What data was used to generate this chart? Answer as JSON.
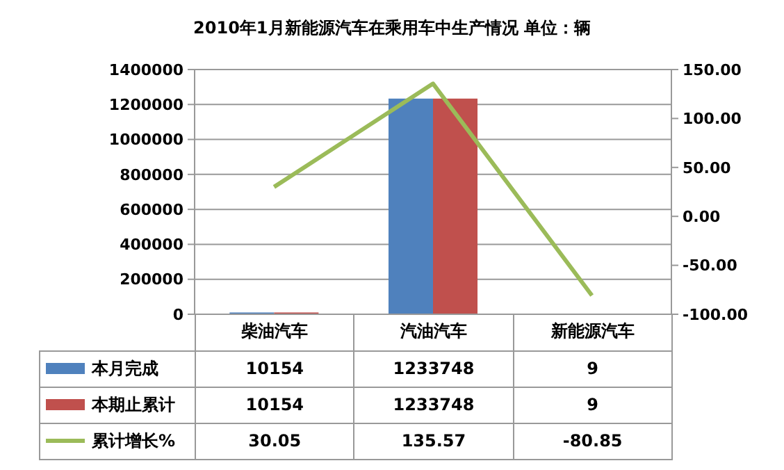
{
  "chart_data": {
    "type": "bar",
    "title": "2010年1月新能源汽车在乘用车中生产情况  单位：辆",
    "categories": [
      "柴油汽车",
      "汽油汽车",
      "新能源汽车"
    ],
    "series": [
      {
        "name": "本月完成",
        "color": "#4f81bd",
        "values": [
          10154,
          1233748,
          9
        ]
      },
      {
        "name": "本期止累计",
        "color": "#c0504d",
        "values": [
          10154,
          1233748,
          9
        ]
      },
      {
        "name": "累计增长%",
        "type": "line",
        "axis": "y2",
        "color": "#9bbb59",
        "values": [
          30.05,
          135.57,
          -80.85
        ]
      }
    ],
    "ylim": [
      0,
      1400000
    ],
    "yticks": [
      0,
      200000,
      400000,
      600000,
      800000,
      1000000,
      1200000,
      1400000
    ],
    "y2lim": [
      -100,
      150
    ],
    "y2ticks": [
      {
        "value": -100,
        "label": "-100.00"
      },
      {
        "value": -50,
        "label": "-50.00"
      },
      {
        "value": 0,
        "label": "0.00"
      },
      {
        "value": 50,
        "label": "50.00"
      },
      {
        "value": 100,
        "label": "100.00"
      },
      {
        "value": 150,
        "label": "150.00"
      }
    ],
    "grid": "y",
    "legend": "bottom",
    "data_labels": true
  }
}
